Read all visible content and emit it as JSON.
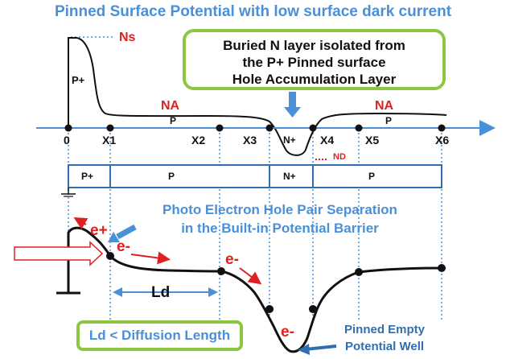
{
  "title": "Pinned Surface Potential with low surface dark current",
  "buried_box": {
    "line1": "Buried N layer isolated from",
    "line2": "the P+ Pinned surface",
    "line3": "Hole Accumulation Layer"
  },
  "profile_labels": {
    "ns": "Ns",
    "na_left": "NA",
    "na_right": "NA",
    "p_surface": "P+",
    "p_left": "P",
    "p_right": "P",
    "n_plus": "N+",
    "nd": "ND"
  },
  "axis_points": [
    "0",
    "X1",
    "X2",
    "X3",
    "X4",
    "X5",
    "X6"
  ],
  "layer_bar": [
    "P+",
    "P",
    "N+",
    "P"
  ],
  "photo_text": {
    "line1": "Photo Electron Hole Pair Separation",
    "line2": "in the Built-in Potential Barrier"
  },
  "carriers": {
    "e_plus": "e+",
    "e_minus_1": "e-",
    "e_minus_2": "e-",
    "e_minus_3": "e-"
  },
  "ld_label": "Ld",
  "ld_note": "Ld < Diffusion Length",
  "well_text": {
    "line1": "Pinned Empty",
    "line2": "Potential Well"
  },
  "colors": {
    "blue": "#4a90d9",
    "green": "#8dc63f",
    "red": "#e02020"
  }
}
